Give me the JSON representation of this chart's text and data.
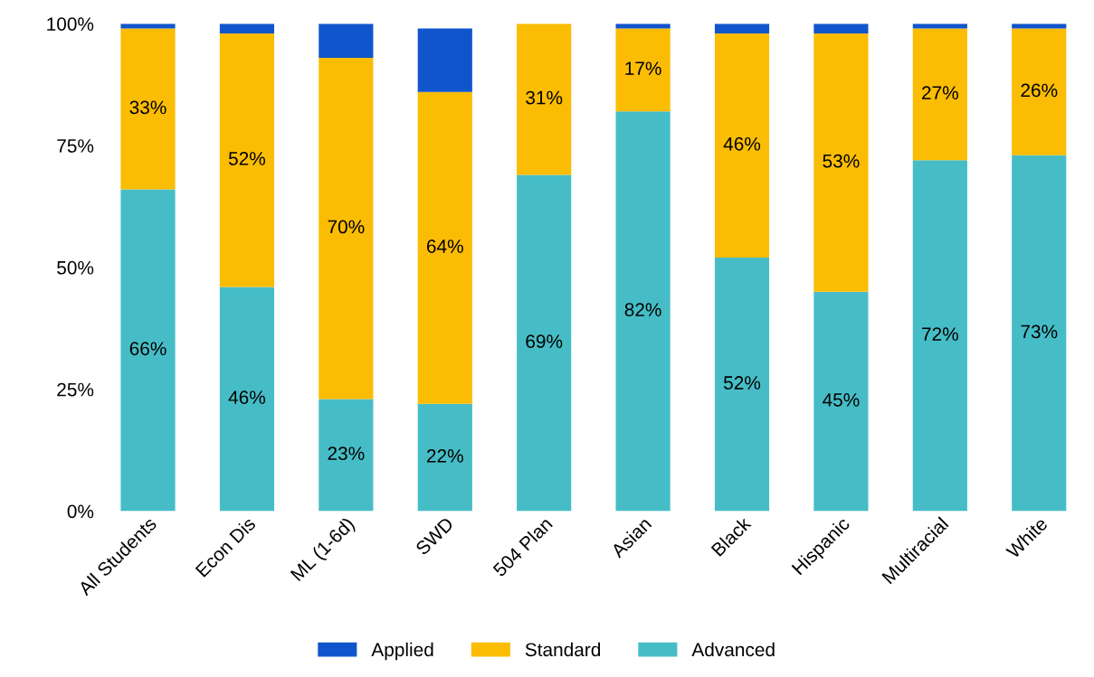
{
  "chart_data": {
    "type": "bar",
    "stacked": true,
    "categories": [
      "All Students",
      "Econ Dis",
      "ML (1-6d)",
      "SWD",
      "504 Plan",
      "Asian",
      "Black",
      "Hispanic",
      "Multiracial",
      "White"
    ],
    "series": [
      {
        "name": "Advanced",
        "color": "#46bdc6",
        "values": [
          66,
          46,
          23,
          22,
          69,
          82,
          52,
          45,
          72,
          73
        ],
        "value_labels": [
          "66%",
          "46%",
          "23%",
          "22%",
          "69%",
          "82%",
          "52%",
          "45%",
          "72%",
          "73%"
        ]
      },
      {
        "name": "Standard",
        "color": "#fbbc04",
        "values": [
          33,
          52,
          70,
          64,
          31,
          17,
          46,
          53,
          27,
          26
        ],
        "value_labels": [
          "33%",
          "52%",
          "70%",
          "64%",
          "31%",
          "17%",
          "46%",
          "53%",
          "27%",
          "26%"
        ]
      },
      {
        "name": "Applied",
        "color": "#1155cc",
        "values": [
          1,
          2,
          7,
          13,
          0,
          1,
          2,
          2,
          1,
          1
        ]
      }
    ],
    "ylim": [
      0,
      100
    ],
    "yticks": [
      {
        "value": 0,
        "label": "0%"
      },
      {
        "value": 25,
        "label": "25%"
      },
      {
        "value": 50,
        "label": "50%"
      },
      {
        "value": 75,
        "label": "75%"
      },
      {
        "value": 100,
        "label": "100%"
      }
    ],
    "legend": "bottom",
    "grid": false
  }
}
